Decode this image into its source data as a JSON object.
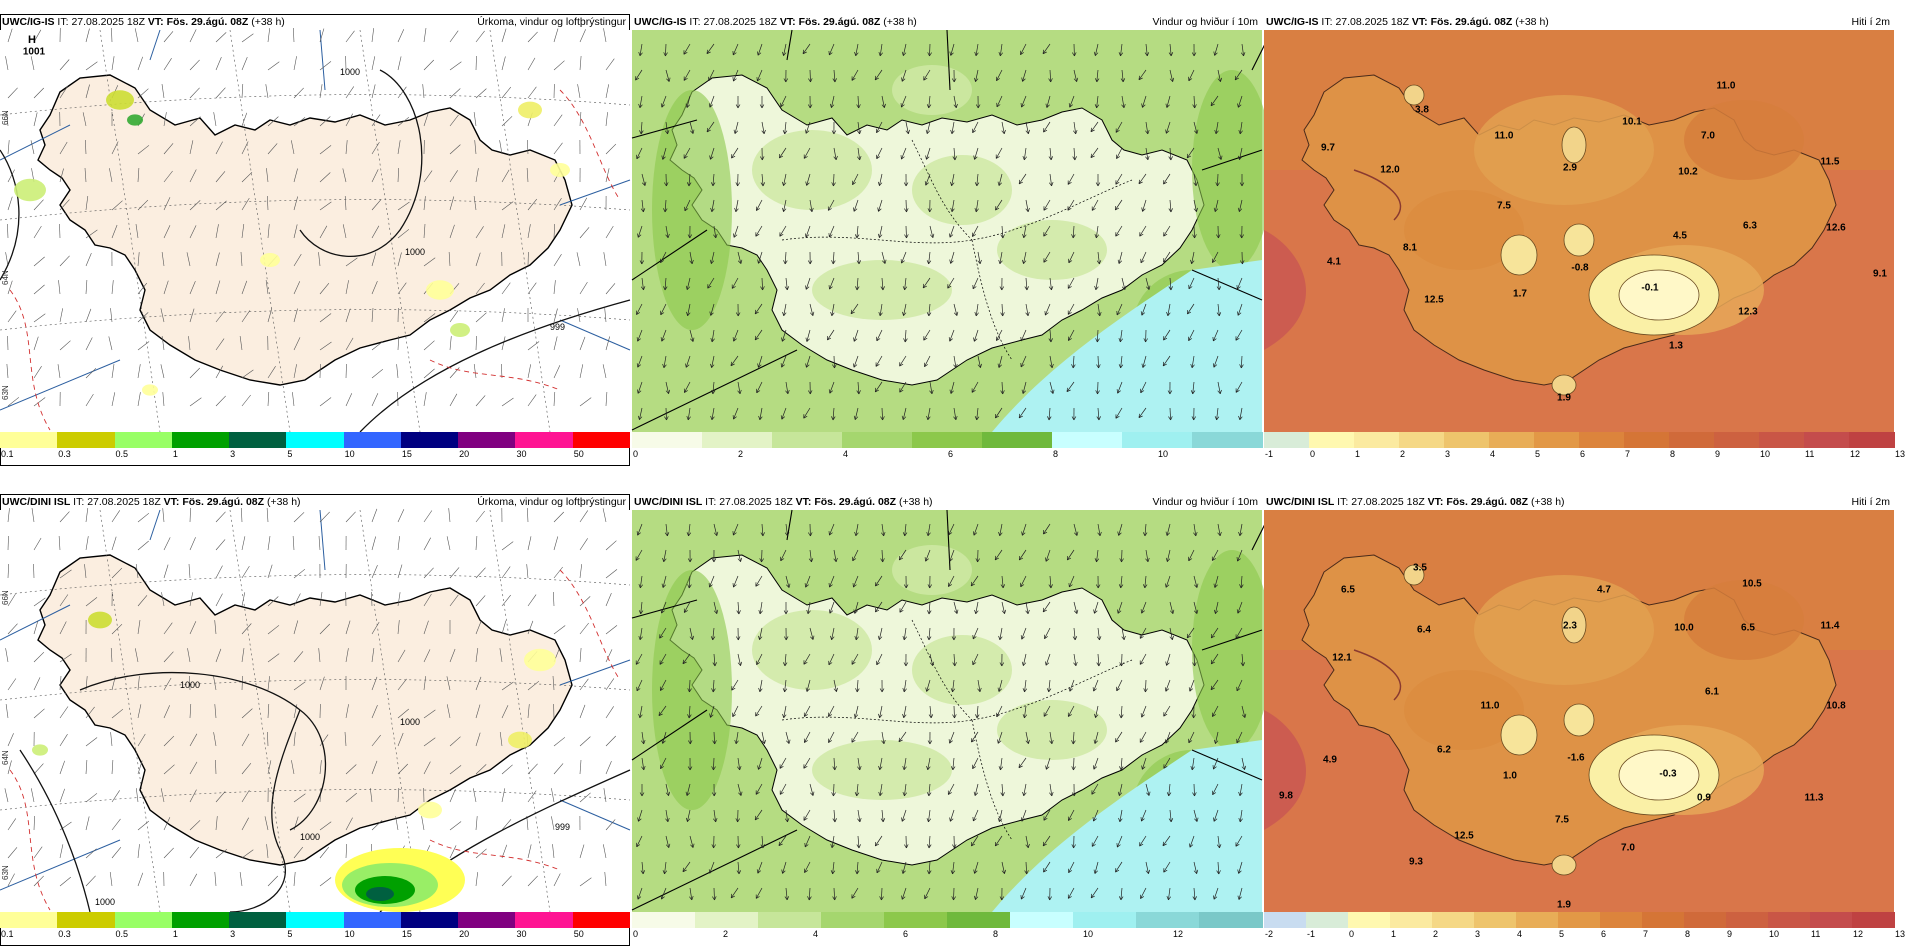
{
  "rows": [
    {
      "model": "UWC/IG-IS",
      "it_label": "IT:",
      "it_value": "27.08.2025 18Z",
      "vt_label": "VT:",
      "vt_value": "Fös. 29.ágú. 08Z",
      "lead": "(+38 h)",
      "panels": {
        "precip": {
          "title": "Úrkoma, vindur og loftþrýstingur",
          "marker_h": "H",
          "marker_value": "1001",
          "isobars": [
            "1000",
            "1000",
            "999"
          ],
          "lat_labels": [
            "66N",
            "64N",
            "63N"
          ]
        },
        "wind": {
          "title": "Vindur og hviður í 10m"
        },
        "temp": {
          "title": "Hiti í 2m",
          "values": [
            "11.0",
            "3.8",
            "10.1",
            "9.7",
            "11.0",
            "7.0",
            "12.0",
            "2.9",
            "10.2",
            "11.5",
            "7.5",
            "6.3",
            "12.6",
            "4.5",
            "8.1",
            "4.1",
            "-0.8",
            "9.1",
            "-0.1",
            "1.7",
            "12.5",
            "12.3",
            "1.3",
            "1.9"
          ]
        }
      }
    },
    {
      "model": "UWC/DINI ISL",
      "it_label": "IT:",
      "it_value": "27.08.2025 18Z",
      "vt_label": "VT:",
      "vt_value": "Fös. 29.ágú. 08Z",
      "lead": "(+38 h)",
      "panels": {
        "precip": {
          "title": "Úrkoma, vindur og loftþrýstingur",
          "isobars": [
            "1000",
            "1000",
            "1000",
            "999",
            "1000"
          ],
          "lat_labels": [
            "66N",
            "64N",
            "63N"
          ]
        },
        "wind": {
          "title": "Vindur og hviður í 10m"
        },
        "temp": {
          "title": "Hiti í 2m",
          "values": [
            "3.5",
            "10.5",
            "4.7",
            "6.5",
            "2.3",
            "6.4",
            "10.0",
            "6.5",
            "11.4",
            "12.1",
            "6.1",
            "11.0",
            "10.8",
            "6.2",
            "-1.6",
            "4.9",
            "1.0",
            "-0.3",
            "9.8",
            "0.9",
            "11.3",
            "7.5",
            "12.5",
            "7.0",
            "9.3",
            "1.9"
          ]
        }
      }
    }
  ],
  "legends": {
    "precip": {
      "colors": [
        "#ffff99",
        "#cccc00",
        "#99ff66",
        "#00a000",
        "#006040",
        "#00ffff",
        "#3366ff",
        "#000080",
        "#800080",
        "#ff1493",
        "#ff0000"
      ],
      "labels": [
        "0.1",
        "0.3",
        "0.5",
        "1",
        "3",
        "5",
        "10",
        "15",
        "20",
        "30",
        "50"
      ]
    },
    "wind_top": {
      "colors": [
        "#f7fbe8",
        "#e3f3c6",
        "#c6e69a",
        "#a5d66e",
        "#8cc84b",
        "#6fb93c",
        "#c8ffff",
        "#9ff0f0",
        "#8ad8d8"
      ],
      "labels": [
        "0",
        "2",
        "4",
        "6",
        "8",
        "10"
      ]
    },
    "wind_bottom": {
      "colors": [
        "#f7fbe8",
        "#e3f3c6",
        "#c6e69a",
        "#a5d66e",
        "#8cc84b",
        "#6fb93c",
        "#c8ffff",
        "#9ff0f0",
        "#8ad8d8",
        "#7ac8c8"
      ],
      "labels": [
        "0",
        "2",
        "4",
        "6",
        "8",
        "10",
        "12"
      ]
    },
    "temp_top": {
      "colors": [
        "#d8ecd8",
        "#fff8b0",
        "#fbeaa0",
        "#f5d886",
        "#eec46c",
        "#e8ad57",
        "#e29846",
        "#dc843c",
        "#d57536",
        "#d06a3a",
        "#cd6140",
        "#c95646",
        "#c44c4c",
        "#bf4242"
      ],
      "labels": [
        "-1",
        "0",
        "1",
        "2",
        "3",
        "4",
        "5",
        "6",
        "7",
        "8",
        "9",
        "10",
        "11",
        "12",
        "13"
      ]
    },
    "temp_bottom": {
      "colors": [
        "#c8dcf0",
        "#d8ecd8",
        "#fff8b0",
        "#fbeaa0",
        "#f5d886",
        "#eec46c",
        "#e8ad57",
        "#e29846",
        "#dc843c",
        "#d57536",
        "#d06a3a",
        "#cd6140",
        "#c95646",
        "#c44c4c",
        "#bf4242"
      ],
      "labels": [
        "-2",
        "-1",
        "0",
        "1",
        "2",
        "3",
        "4",
        "5",
        "6",
        "7",
        "8",
        "9",
        "10",
        "11",
        "12",
        "13"
      ]
    }
  }
}
